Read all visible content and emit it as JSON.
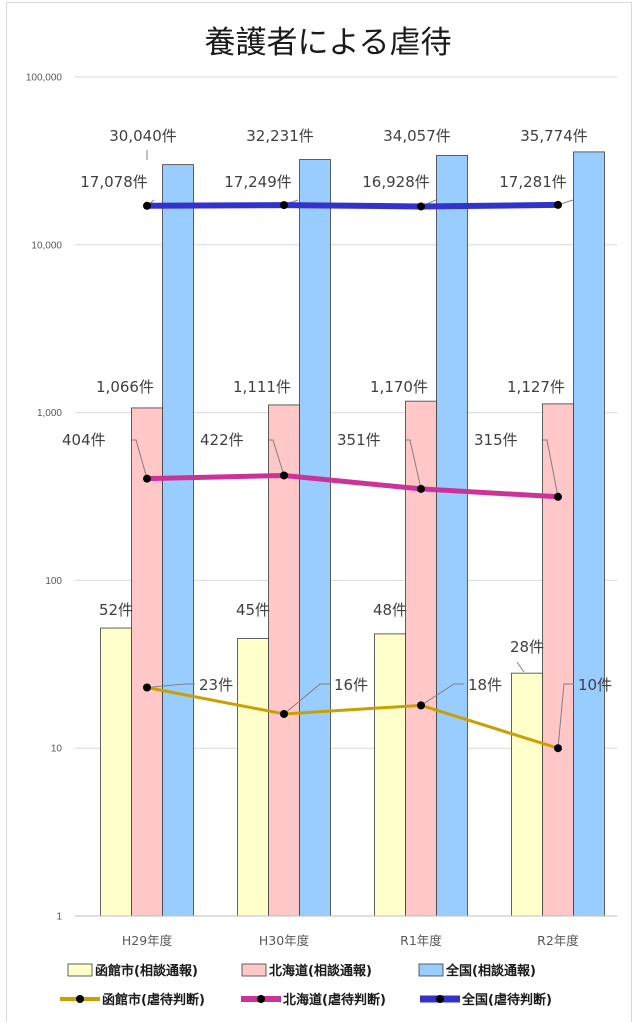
{
  "chart_data": {
    "type": "bar",
    "title": "養護者による虐待",
    "categories": [
      "H29年度",
      "H30年度",
      "R1年度",
      "R2年度"
    ],
    "yscale": "log",
    "ylim": [
      1,
      100000
    ],
    "yticks": [
      "1",
      "10",
      "100",
      "1,000",
      "10,000",
      "100,000"
    ],
    "grid": true,
    "legend_position": "bottom",
    "series": [
      {
        "name": "函館市(相談通報)",
        "kind": "bar",
        "color": "#ffffcc",
        "values": [
          52,
          45,
          48,
          28
        ],
        "labels": [
          "52件",
          "45件",
          "48件",
          "28件"
        ]
      },
      {
        "name": "北海道(相談通報)",
        "kind": "bar",
        "color": "#ffc7c7",
        "values": [
          1066,
          1111,
          1170,
          1127
        ],
        "labels": [
          "1,066件",
          "1,111件",
          "1,170件",
          "1,127件"
        ]
      },
      {
        "name": "全国(相談通報)",
        "kind": "bar",
        "color": "#99ccff",
        "values": [
          30040,
          32231,
          34057,
          35774
        ],
        "labels": [
          "30,040件",
          "32,231件",
          "34,057件",
          "35,774件"
        ]
      },
      {
        "name": "函館市(虐待判断)",
        "kind": "line",
        "color": "#c9a000",
        "values": [
          23,
          16,
          18,
          10
        ],
        "labels": [
          "23件",
          "16件",
          "18件",
          "10件"
        ]
      },
      {
        "name": "北海道(虐待判断)",
        "kind": "line",
        "color": "#cc3399",
        "values": [
          404,
          422,
          351,
          315
        ],
        "labels": [
          "404件",
          "422件",
          "351件",
          "315件"
        ]
      },
      {
        "name": "全国(虐待判断)",
        "kind": "line",
        "color": "#3333cc",
        "values": [
          17078,
          17249,
          16928,
          17281
        ],
        "labels": [
          "17,078件",
          "17,249件",
          "16,928件",
          "17,281件"
        ]
      }
    ]
  }
}
